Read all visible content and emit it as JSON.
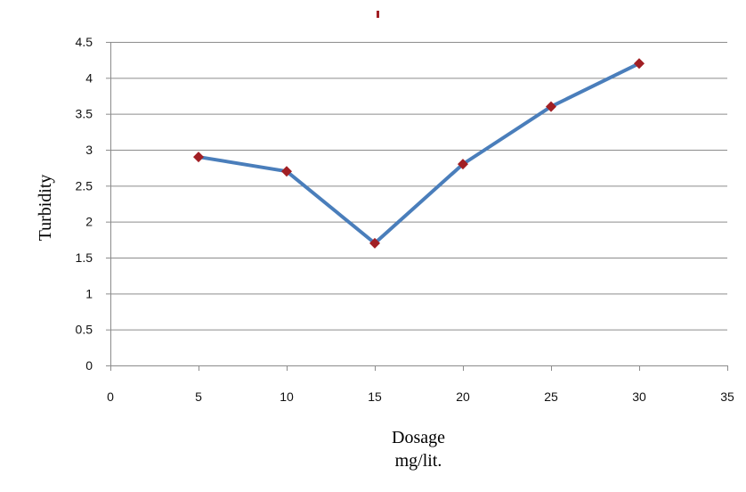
{
  "chart_data": {
    "type": "line",
    "title": "",
    "xlabel": "Dosage",
    "xlabel_unit": "mg/lit.",
    "ylabel": "Turbidity",
    "xlim": [
      0,
      35
    ],
    "ylim": [
      0,
      4.5
    ],
    "x_ticks": [
      0,
      5,
      10,
      15,
      20,
      25,
      30,
      35
    ],
    "x_tick_labels": [
      "0",
      "5",
      "10",
      "15",
      "20",
      "25",
      "30",
      "35"
    ],
    "y_ticks": [
      0,
      0.5,
      1,
      1.5,
      2,
      2.5,
      3,
      3.5,
      4,
      4.5
    ],
    "y_tick_labels": [
      "0",
      "0.5",
      "1",
      "1.5",
      "2",
      "2.5",
      "3",
      "3.5",
      "4",
      "4.5"
    ],
    "grid": true,
    "legend": "none",
    "series": [
      {
        "x": [
          5,
          10,
          15,
          20,
          25,
          30
        ],
        "values": [
          2.9,
          2.7,
          1.7,
          2.8,
          3.6,
          4.2
        ],
        "line_color": "#4a7ebb",
        "marker_color": "#a11f24",
        "marker": "diamond"
      }
    ],
    "title_color": "#a11f24"
  }
}
